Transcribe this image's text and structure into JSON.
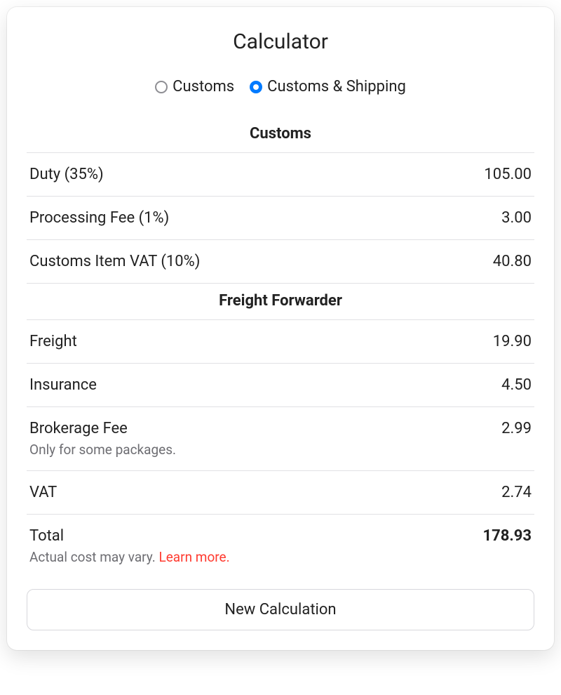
{
  "title": "Calculator",
  "radios": {
    "customs": "Customs",
    "customs_shipping": "Customs & Shipping",
    "selected": "customs_shipping"
  },
  "sections": {
    "customs": {
      "header": "Customs",
      "rows": [
        {
          "label": "Duty (35%)",
          "value": "105.00"
        },
        {
          "label": "Processing Fee (1%)",
          "value": "3.00"
        },
        {
          "label": "Customs Item VAT (10%)",
          "value": "40.80"
        }
      ]
    },
    "freight": {
      "header": "Freight Forwarder",
      "rows": [
        {
          "label": "Freight",
          "value": "19.90"
        },
        {
          "label": "Insurance",
          "value": "4.50"
        },
        {
          "label": "Brokerage Fee",
          "sub": "Only for some packages.",
          "value": "2.99"
        },
        {
          "label": "VAT",
          "value": "2.74"
        }
      ]
    }
  },
  "total": {
    "label": "Total",
    "value": "178.93",
    "sub_prefix": "Actual cost may vary. ",
    "learn_more": "Learn more."
  },
  "button": {
    "new_calculation": "New Calculation"
  },
  "colors": {
    "accent": "#007aff",
    "link": "#ff3b30",
    "border": "#e1e1e4",
    "text": "#222222",
    "subtext": "#6d6d72"
  }
}
